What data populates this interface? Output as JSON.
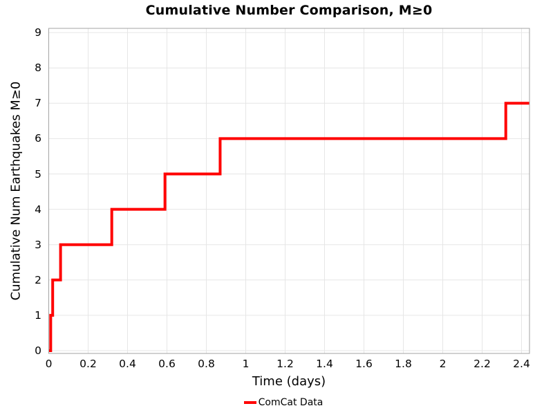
{
  "figure": {
    "background": "#ffffff"
  },
  "chart_data": {
    "type": "line",
    "subtype": "cumulative-step",
    "title": "Cumulative Number Comparison, M≥0",
    "xlabel": "Time (days)",
    "ylabel": "Cumulative Num Earthquakes M≥0",
    "grid": true,
    "legend_position": "bottom-center",
    "xlim": [
      0,
      2.44
    ],
    "ylim": [
      0,
      9.2
    ],
    "x_ticks": [
      {
        "v": 0,
        "label": "0"
      },
      {
        "v": 0.2,
        "label": "0.2"
      },
      {
        "v": 0.4,
        "label": "0.4"
      },
      {
        "v": 0.6,
        "label": "0.6"
      },
      {
        "v": 0.8,
        "label": "0.8"
      },
      {
        "v": 1,
        "label": "1"
      },
      {
        "v": 1.2,
        "label": "1.2"
      },
      {
        "v": 1.4,
        "label": "1.4"
      },
      {
        "v": 1.6,
        "label": "1.6"
      },
      {
        "v": 1.8,
        "label": "1.8"
      },
      {
        "v": 2,
        "label": "2"
      },
      {
        "v": 2.2,
        "label": "2.2"
      },
      {
        "v": 2.4,
        "label": "2.4"
      }
    ],
    "y_ticks": [
      {
        "v": 0,
        "label": "0"
      },
      {
        "v": 1,
        "label": "1"
      },
      {
        "v": 2,
        "label": "2"
      },
      {
        "v": 3,
        "label": "3"
      },
      {
        "v": 4,
        "label": "4"
      },
      {
        "v": 5,
        "label": "5"
      },
      {
        "v": 6,
        "label": "6"
      },
      {
        "v": 7,
        "label": "7"
      },
      {
        "v": 8,
        "label": "8"
      },
      {
        "v": 9,
        "label": "9"
      }
    ],
    "series": [
      {
        "name": "ComCat Data",
        "color": "#ff0000",
        "line_width": 4,
        "step_mode": "post",
        "start": [
          0,
          0
        ],
        "events": [
          {
            "t": 0.01,
            "cumulative": 1
          },
          {
            "t": 0.02,
            "cumulative": 2
          },
          {
            "t": 0.06,
            "cumulative": 3
          },
          {
            "t": 0.32,
            "cumulative": 4
          },
          {
            "t": 0.59,
            "cumulative": 5
          },
          {
            "t": 0.87,
            "cumulative": 6
          },
          {
            "t": 2.32,
            "cumulative": 7
          }
        ],
        "end_t": 2.44
      }
    ],
    "colors": {
      "grid": "#e6e6e6",
      "frame": "#a3a3a3",
      "text": "#000000"
    }
  }
}
